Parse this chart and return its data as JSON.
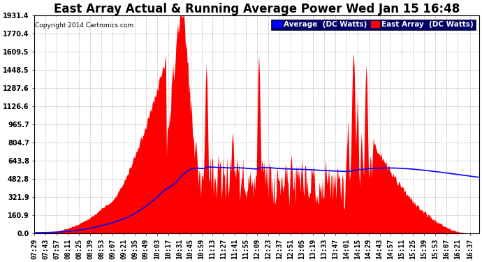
{
  "title": "East Array Actual & Running Average Power Wed Jan 15 16:48",
  "copyright": "Copyright 2014 Cartronics.com",
  "ymax": 1931.4,
  "yticks": [
    0.0,
    160.9,
    321.9,
    482.8,
    643.8,
    804.7,
    965.7,
    1126.6,
    1287.6,
    1448.5,
    1609.5,
    1770.4,
    1931.4
  ],
  "bg_color": "#ffffff",
  "grid_color": "#bbbbbb",
  "bar_color": "#ff0000",
  "avg_color": "#0000ff",
  "title_fontsize": 12,
  "tick_fontsize": 7,
  "copyright_fontsize": 6.5,
  "legend_fontsize": 7.5
}
